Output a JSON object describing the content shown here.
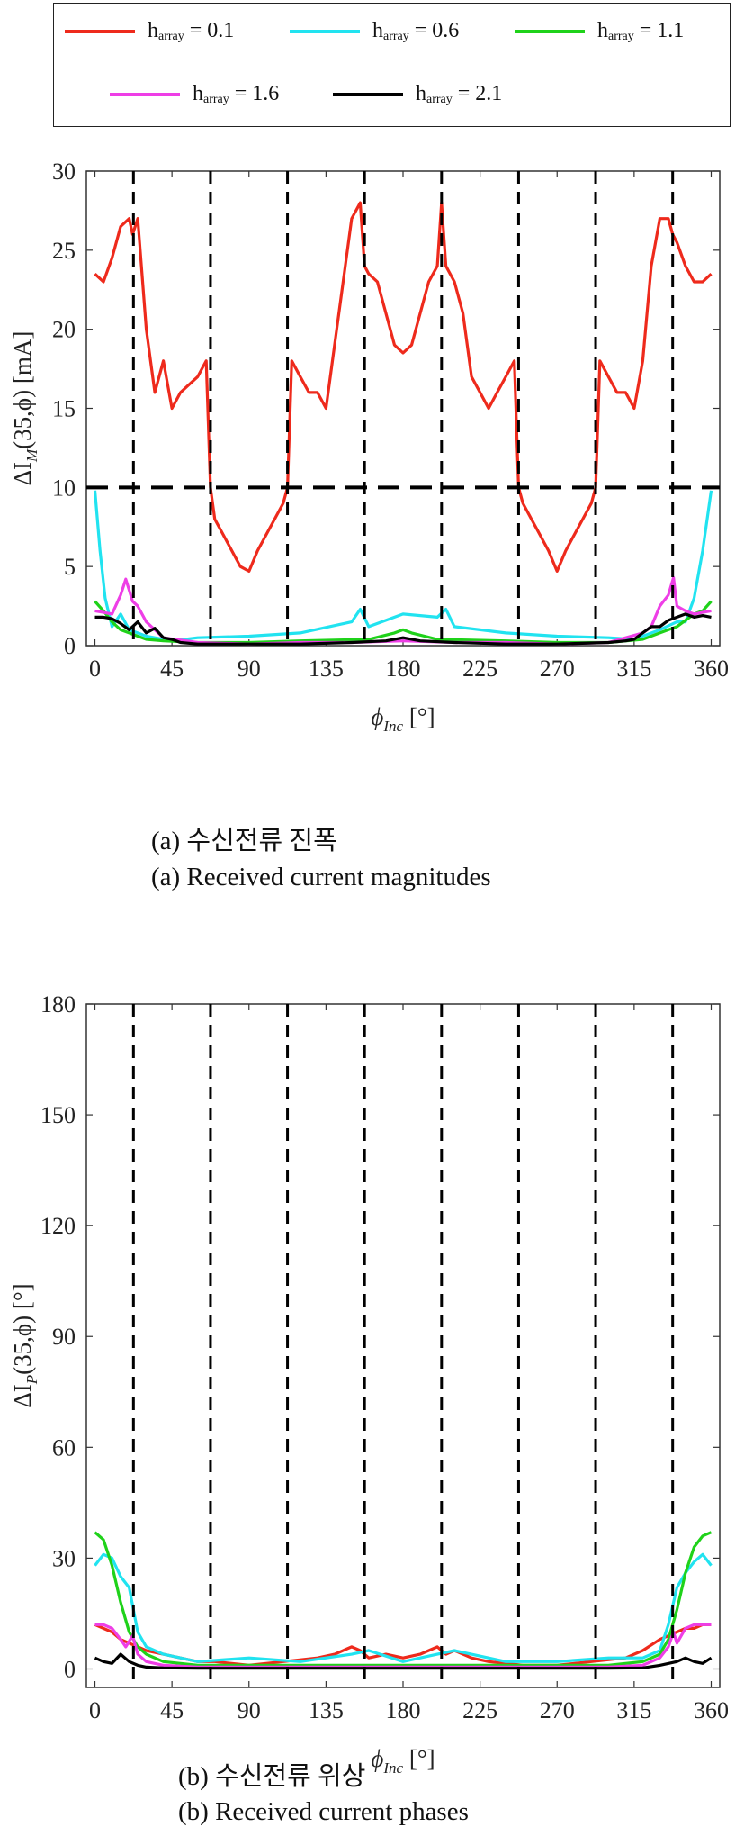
{
  "legend": {
    "items": [
      {
        "h": "h",
        "sub": "array",
        "rest": " = 0.1",
        "color": "#ee2a1c"
      },
      {
        "h": "h",
        "sub": "array",
        "rest": " = 0.6",
        "color": "#21e3f0"
      },
      {
        "h": "h",
        "sub": "array",
        "rest": " = 1.1",
        "color": "#1fd21a"
      },
      {
        "h": "h",
        "sub": "array",
        "rest": " = 1.6",
        "color": "#ee3ee6"
      },
      {
        "h": "h",
        "sub": "array",
        "rest": " = 2.1",
        "color": "#000000"
      }
    ]
  },
  "chart_data": [
    {
      "type": "line",
      "ylabel": "ΔI_M(35,ϕ) [mA]",
      "xlabel": "ϕ_Inc [°]",
      "xlim": [
        -5,
        365
      ],
      "ylim": [
        0,
        30
      ],
      "xticks": [
        0,
        45,
        90,
        135,
        180,
        225,
        270,
        315,
        360
      ],
      "yticks": [
        0,
        5,
        10,
        15,
        20,
        25,
        30
      ],
      "vlines": [
        22.5,
        67.5,
        112.5,
        157.5,
        202.5,
        247.5,
        292.5,
        337.5
      ],
      "hlines": [
        10
      ],
      "series": [
        {
          "name": "h_array = 0.1",
          "color": "#ee2a1c",
          "x": [
            0,
            5,
            10,
            15,
            20,
            22,
            25,
            30,
            35,
            40,
            45,
            50,
            55,
            60,
            65,
            67.5,
            70,
            75,
            80,
            85,
            90,
            95,
            100,
            105,
            110,
            112.5,
            115,
            120,
            125,
            130,
            135,
            140,
            145,
            150,
            155,
            157.5,
            160,
            165,
            170,
            175,
            180,
            185,
            190,
            195,
            200,
            202.5,
            205,
            210,
            215,
            220,
            225,
            230,
            235,
            240,
            245,
            247.5,
            250,
            255,
            260,
            265,
            270,
            275,
            280,
            285,
            290,
            292.5,
            295,
            300,
            305,
            310,
            315,
            320,
            325,
            330,
            335,
            337.5,
            340,
            345,
            350,
            355,
            360
          ],
          "y": [
            23.5,
            23,
            24.5,
            26.5,
            27,
            26,
            27,
            20,
            16,
            18,
            15,
            16,
            16.5,
            17,
            18,
            10,
            8,
            7,
            6,
            5,
            4.7,
            6,
            7,
            8,
            9,
            10,
            18,
            17,
            16,
            16,
            15,
            19,
            23,
            27,
            28,
            24,
            23.5,
            23,
            21,
            19,
            18.5,
            19,
            21,
            23,
            24,
            28,
            24,
            23,
            21,
            17,
            16,
            15,
            16,
            17,
            18,
            10,
            9,
            8,
            7,
            6,
            4.7,
            6,
            7,
            8,
            9,
            10,
            18,
            17,
            16,
            16,
            15,
            18,
            24,
            27,
            27,
            26,
            25.5,
            24,
            23,
            23,
            23.5
          ]
        },
        {
          "name": "h_array = 0.6",
          "color": "#21e3f0",
          "x": [
            0,
            3,
            6,
            10,
            15,
            20,
            25,
            30,
            35,
            40,
            45,
            60,
            90,
            120,
            150,
            155,
            160,
            180,
            200,
            205,
            210,
            240,
            270,
            300,
            315,
            320,
            330,
            340,
            345,
            350,
            355,
            360
          ],
          "y": [
            9.8,
            6,
            3,
            1.2,
            2,
            1,
            0.8,
            0.6,
            0.5,
            0.4,
            0.3,
            0.5,
            0.6,
            0.8,
            1.5,
            2.3,
            1.2,
            2,
            1.8,
            2.3,
            1.2,
            0.8,
            0.6,
            0.5,
            0.4,
            0.6,
            1,
            1.5,
            1.5,
            3,
            6,
            9.8
          ]
        },
        {
          "name": "h_array = 1.1",
          "color": "#1fd21a",
          "x": [
            0,
            5,
            10,
            15,
            20,
            25,
            30,
            40,
            60,
            90,
            120,
            160,
            175,
            180,
            185,
            200,
            240,
            270,
            300,
            320,
            330,
            340,
            345,
            350,
            355,
            360
          ],
          "y": [
            2.8,
            2.2,
            1.5,
            1,
            0.8,
            0.6,
            0.4,
            0.3,
            0.2,
            0.2,
            0.3,
            0.4,
            0.8,
            1,
            0.8,
            0.4,
            0.3,
            0.2,
            0.2,
            0.4,
            0.8,
            1.2,
            1.6,
            2,
            2.2,
            2.8
          ]
        },
        {
          "name": "h_array = 1.6",
          "color": "#ee3ee6",
          "x": [
            0,
            5,
            10,
            15,
            18,
            22,
            25,
            30,
            35,
            40,
            60,
            90,
            120,
            150,
            180,
            210,
            240,
            270,
            300,
            320,
            325,
            330,
            335,
            338,
            340,
            345,
            350,
            355,
            360
          ],
          "y": [
            2.2,
            2.1,
            2,
            3.2,
            4.2,
            2.8,
            2.5,
            1.5,
            1,
            0.5,
            0.2,
            0.1,
            0.2,
            0.2,
            0.3,
            0.2,
            0.2,
            0.1,
            0.2,
            0.8,
            1.2,
            2.5,
            3.2,
            4.3,
            2.5,
            2.2,
            2,
            2.1,
            2.2
          ]
        },
        {
          "name": "h_array = 2.1",
          "color": "#000000",
          "x": [
            0,
            5,
            10,
            15,
            20,
            25,
            30,
            35,
            40,
            45,
            50,
            60,
            90,
            120,
            150,
            170,
            180,
            190,
            210,
            240,
            270,
            300,
            310,
            315,
            320,
            325,
            330,
            335,
            340,
            345,
            350,
            355,
            360
          ],
          "y": [
            1.8,
            1.8,
            1.7,
            1.4,
            1,
            1.5,
            0.8,
            1.1,
            0.5,
            0.4,
            0.2,
            0.1,
            0.1,
            0.1,
            0.2,
            0.3,
            0.5,
            0.3,
            0.2,
            0.1,
            0.1,
            0.2,
            0.3,
            0.4,
            0.8,
            1.2,
            1.2,
            1.6,
            1.8,
            2,
            1.8,
            1.9,
            1.8
          ]
        }
      ]
    },
    {
      "type": "line",
      "ylabel": "ΔI_P(35,ϕ) [°]",
      "xlabel": "ϕ_Inc [°]",
      "xlim": [
        -5,
        365
      ],
      "ylim": [
        -5,
        180
      ],
      "xticks": [
        0,
        45,
        90,
        135,
        180,
        225,
        270,
        315,
        360
      ],
      "yticks": [
        0,
        30,
        60,
        90,
        120,
        150,
        180
      ],
      "vlines": [
        22.5,
        67.5,
        112.5,
        157.5,
        202.5,
        247.5,
        292.5,
        337.5
      ],
      "hlines": [],
      "series": [
        {
          "name": "h_array = 0.1",
          "color": "#ee2a1c",
          "x": [
            0,
            5,
            10,
            15,
            20,
            25,
            30,
            40,
            50,
            60,
            70,
            90,
            110,
            130,
            140,
            150,
            155,
            160,
            170,
            180,
            190,
            200,
            205,
            210,
            220,
            230,
            250,
            270,
            290,
            310,
            320,
            330,
            340,
            345,
            350,
            355,
            360
          ],
          "y": [
            12,
            11,
            10,
            8,
            7,
            6,
            5,
            4,
            3,
            2,
            2,
            1,
            2,
            3,
            4,
            6,
            5,
            3,
            4,
            3,
            4,
            6,
            4,
            5,
            3,
            2,
            1,
            1,
            2,
            3,
            5,
            8,
            10,
            11,
            11,
            12,
            12
          ]
        },
        {
          "name": "h_array = 0.6",
          "color": "#21e3f0",
          "x": [
            0,
            5,
            10,
            15,
            20,
            25,
            30,
            40,
            60,
            90,
            120,
            150,
            160,
            180,
            200,
            210,
            240,
            270,
            300,
            320,
            330,
            335,
            340,
            345,
            350,
            355,
            360
          ],
          "y": [
            28,
            31,
            30,
            25,
            22,
            10,
            6,
            4,
            2,
            3,
            2,
            4,
            5,
            2,
            4,
            5,
            2,
            2,
            3,
            3,
            5,
            12,
            22,
            26,
            29,
            31,
            28
          ]
        },
        {
          "name": "h_array = 1.1",
          "color": "#1fd21a",
          "x": [
            0,
            5,
            10,
            15,
            20,
            25,
            30,
            40,
            60,
            90,
            120,
            180,
            240,
            270,
            300,
            320,
            330,
            335,
            340,
            345,
            350,
            355,
            360
          ],
          "y": [
            37,
            35,
            28,
            18,
            10,
            6,
            4,
            2,
            1,
            1,
            1,
            1,
            1,
            1,
            1,
            2,
            4,
            8,
            16,
            26,
            33,
            36,
            37
          ]
        },
        {
          "name": "h_array = 1.6",
          "color": "#ee3ee6",
          "x": [
            0,
            5,
            10,
            15,
            18,
            22,
            25,
            30,
            40,
            60,
            90,
            120,
            180,
            240,
            270,
            300,
            320,
            330,
            335,
            338,
            340,
            345,
            350,
            355,
            360
          ],
          "y": [
            12,
            12,
            11,
            8,
            6,
            9,
            4,
            2,
            1,
            0.5,
            0.5,
            0.5,
            0.5,
            0.5,
            0.5,
            0.5,
            1,
            3,
            6,
            10,
            7,
            11,
            12,
            12,
            12
          ]
        },
        {
          "name": "h_array = 2.1",
          "color": "#000000",
          "x": [
            0,
            5,
            10,
            15,
            20,
            25,
            30,
            40,
            60,
            90,
            120,
            180,
            240,
            270,
            300,
            320,
            330,
            340,
            345,
            350,
            355,
            360
          ],
          "y": [
            3,
            2,
            1.5,
            4,
            2,
            1,
            0.5,
            0.3,
            0.2,
            0.2,
            0.2,
            0.2,
            0.2,
            0.2,
            0.2,
            0.3,
            1,
            2,
            3,
            2,
            1.5,
            3
          ]
        }
      ]
    }
  ],
  "captions": {
    "a_korean": "(a)  수신전류  진폭",
    "a_english": "(a)  Received  current  magnitudes",
    "b_korean": "(b)  수신전류  위상",
    "b_english": "(b)  Received  current  phases"
  }
}
